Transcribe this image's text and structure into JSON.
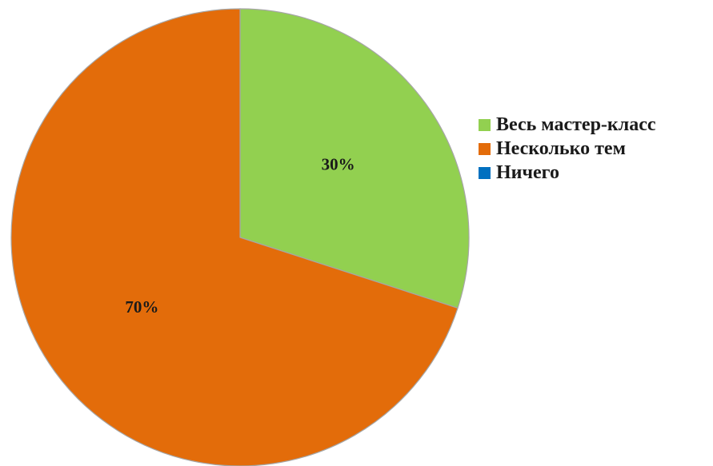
{
  "chart_data": {
    "type": "pie",
    "title": "",
    "categories": [
      "Весь мастер-класс",
      "Несколько тем",
      "Ничего"
    ],
    "values": [
      30,
      70,
      0
    ],
    "data_labels": [
      "30%",
      "70%",
      ""
    ],
    "colors": [
      "#92d050",
      "#e36c0a",
      "#0070c0"
    ],
    "legend": {
      "position": "right",
      "entries": [
        "Весь мастер-класс",
        "Несколько тем",
        "Ничего"
      ]
    }
  }
}
